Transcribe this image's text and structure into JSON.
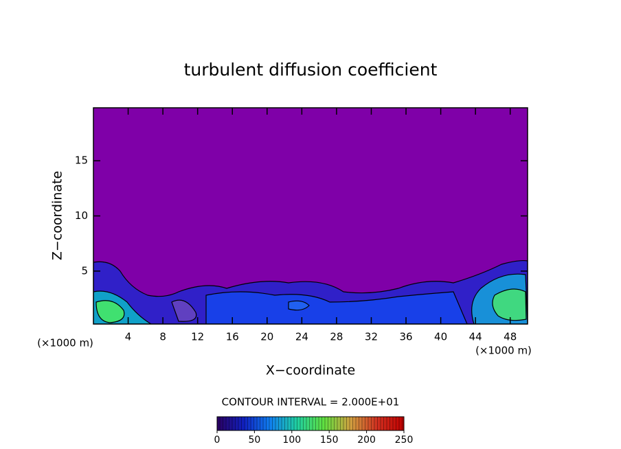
{
  "chart_data": {
    "type": "contour",
    "title": "turbulent diffusion coefficient",
    "xlabel": "X−coordinate",
    "ylabel": "Z−coordinate",
    "x_unit_left": "(×1000 m)",
    "x_unit_right": "(×1000 m)",
    "xlim": [
      0,
      50
    ],
    "xticks": [
      4,
      8,
      12,
      16,
      20,
      24,
      28,
      32,
      36,
      40,
      44,
      48
    ],
    "ylim": [
      0.2,
      19.8
    ],
    "yticks": [
      5,
      10,
      15
    ],
    "background_color": "#7f00a8",
    "contour_interval_text": "CONTOUR INTERVAL = 2.000E+01",
    "colorbar": {
      "lim": [
        0,
        250
      ],
      "ticks": [
        0,
        50,
        100,
        150,
        200,
        250
      ],
      "colors": [
        "#2a0060",
        "#1020c0",
        "#1080f0",
        "#20d0a0",
        "#60e040",
        "#d0a040",
        "#d03020",
        "#c00000"
      ]
    }
  }
}
